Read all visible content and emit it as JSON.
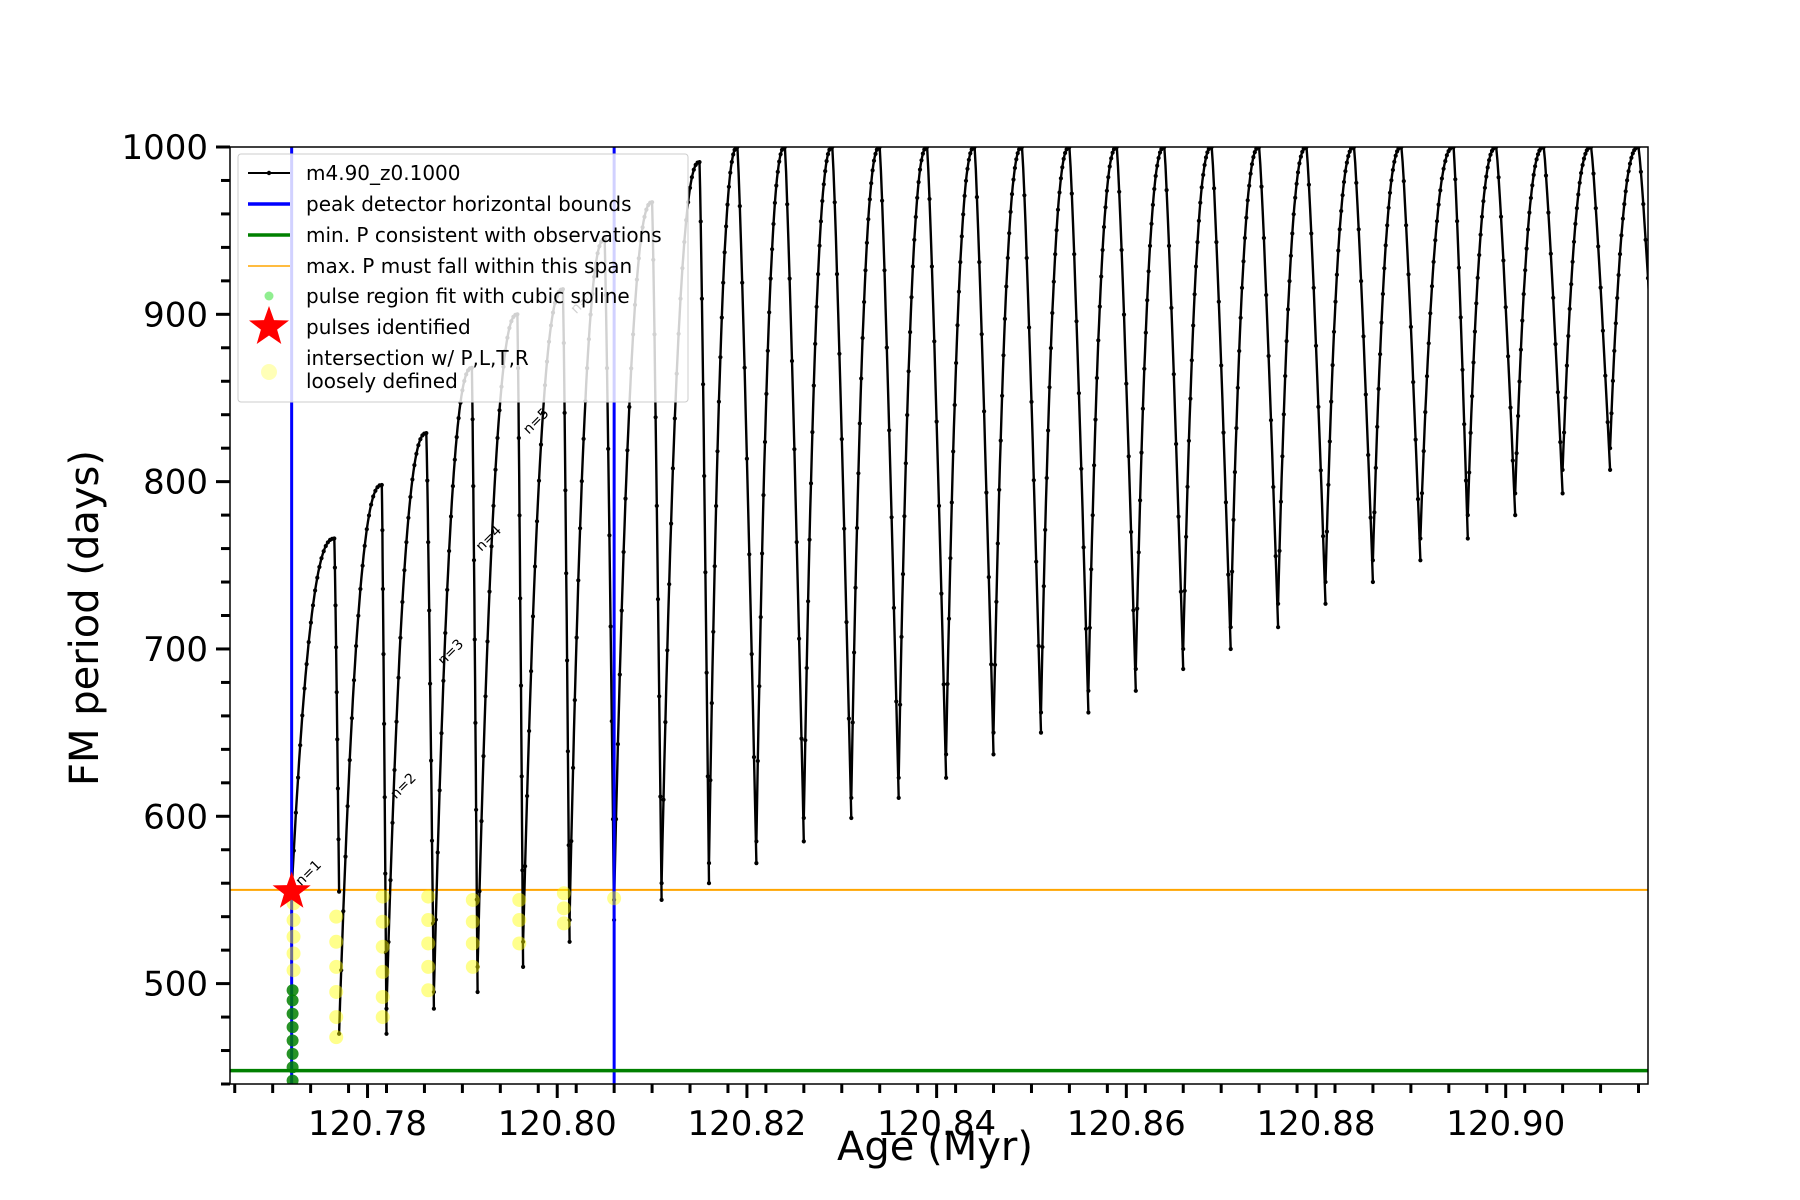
{
  "chart_data": {
    "type": "line",
    "xlabel": "Age (Myr)",
    "ylabel": "FM period (days)",
    "xlim": [
      120.7655,
      120.915
    ],
    "ylim": [
      440,
      1000
    ],
    "xticks": [
      {
        "value": 120.78,
        "label": "120.78"
      },
      {
        "value": 120.8,
        "label": "120.80"
      },
      {
        "value": 120.82,
        "label": "120.82"
      },
      {
        "value": 120.84,
        "label": "120.84"
      },
      {
        "value": 120.86,
        "label": "120.86"
      },
      {
        "value": 120.88,
        "label": "120.88"
      },
      {
        "value": 120.9,
        "label": "120.90"
      }
    ],
    "yticks": [
      {
        "value": 500,
        "label": "500"
      },
      {
        "value": 600,
        "label": "600"
      },
      {
        "value": 700,
        "label": "700"
      },
      {
        "value": 800,
        "label": "800"
      },
      {
        "value": 900,
        "label": "900"
      },
      {
        "value": 1000,
        "label": "1000"
      }
    ],
    "grid": false,
    "legend_position": "top-left",
    "legend": [
      {
        "label": "m4.90_z0.1000",
        "style": "line-dot",
        "color": "#000000"
      },
      {
        "label": "peak detector horizontal bounds",
        "style": "line",
        "color": "#0000ff"
      },
      {
        "label": "min. P consistent with observations",
        "style": "line",
        "color": "#008000"
      },
      {
        "label": "max. P must fall within this span",
        "style": "line",
        "color": "#ffa500"
      },
      {
        "label": "pulse region fit with cubic spline",
        "style": "dot",
        "color": "#90ee90"
      },
      {
        "label": "pulses identified",
        "style": "star",
        "color": "#ff0000"
      },
      {
        "label": "intersection w/ P,L,T,R\nloosely defined",
        "style": "circle",
        "color": "#ffff99"
      }
    ],
    "series": [
      {
        "name": "m4.90_z0.1000",
        "color": "#000000",
        "pulses": [
          {
            "start": 120.772,
            "peak": 120.7765,
            "end": 120.777,
            "top": 766,
            "bottom": 555,
            "start_low": 555
          },
          {
            "start": 120.777,
            "peak": 120.7815,
            "end": 120.782,
            "top": 798,
            "bottom": 470
          },
          {
            "start": 120.782,
            "peak": 120.7862,
            "end": 120.787,
            "top": 829,
            "bottom": 485
          },
          {
            "start": 120.787,
            "peak": 120.791,
            "end": 120.7916,
            "top": 868,
            "bottom": 495
          },
          {
            "start": 120.7916,
            "peak": 120.7958,
            "end": 120.7964,
            "top": 900,
            "bottom": 510
          },
          {
            "start": 120.7964,
            "peak": 120.8006,
            "end": 120.8013,
            "top": 915,
            "bottom": 525
          },
          {
            "start": 120.8013,
            "peak": 120.805,
            "end": 120.806,
            "top": 945,
            "bottom": 538
          },
          {
            "start": 120.806,
            "peak": 120.81,
            "end": 120.811,
            "top": 967,
            "bottom": 550
          },
          {
            "start": 120.811,
            "peak": 120.815,
            "end": 120.816,
            "top": 991,
            "bottom": 560
          },
          {
            "start": 120.816,
            "peak": 120.819,
            "end": 120.821,
            "top": 1000,
            "bottom": 572
          },
          {
            "start": 120.821,
            "peak": 120.824,
            "end": 120.826,
            "top": 1000,
            "bottom": 585
          },
          {
            "start": 120.826,
            "peak": 120.829,
            "end": 120.831,
            "top": 1000,
            "bottom": 599
          },
          {
            "start": 120.831,
            "peak": 120.834,
            "end": 120.836,
            "top": 1000,
            "bottom": 611
          },
          {
            "start": 120.836,
            "peak": 120.839,
            "end": 120.841,
            "top": 1000,
            "bottom": 623
          },
          {
            "start": 120.841,
            "peak": 120.844,
            "end": 120.846,
            "top": 1000,
            "bottom": 637
          },
          {
            "start": 120.846,
            "peak": 120.849,
            "end": 120.851,
            "top": 1000,
            "bottom": 650
          },
          {
            "start": 120.851,
            "peak": 120.854,
            "end": 120.856,
            "top": 1000,
            "bottom": 662
          },
          {
            "start": 120.856,
            "peak": 120.859,
            "end": 120.861,
            "top": 1000,
            "bottom": 675
          },
          {
            "start": 120.861,
            "peak": 120.864,
            "end": 120.866,
            "top": 1000,
            "bottom": 688
          },
          {
            "start": 120.866,
            "peak": 120.869,
            "end": 120.871,
            "top": 1000,
            "bottom": 700
          },
          {
            "start": 120.871,
            "peak": 120.874,
            "end": 120.876,
            "top": 1000,
            "bottom": 713
          },
          {
            "start": 120.876,
            "peak": 120.879,
            "end": 120.881,
            "top": 1000,
            "bottom": 727
          },
          {
            "start": 120.881,
            "peak": 120.884,
            "end": 120.886,
            "top": 1000,
            "bottom": 740
          },
          {
            "start": 120.886,
            "peak": 120.889,
            "end": 120.891,
            "top": 1000,
            "bottom": 753
          },
          {
            "start": 120.891,
            "peak": 120.8945,
            "end": 120.896,
            "top": 1000,
            "bottom": 766
          },
          {
            "start": 120.896,
            "peak": 120.899,
            "end": 120.901,
            "top": 1000,
            "bottom": 780
          },
          {
            "start": 120.901,
            "peak": 120.904,
            "end": 120.906,
            "top": 1000,
            "bottom": 793
          },
          {
            "start": 120.906,
            "peak": 120.909,
            "end": 120.911,
            "top": 1000,
            "bottom": 807
          },
          {
            "start": 120.911,
            "peak": 120.914,
            "end": 120.916,
            "top": 1000,
            "bottom": 820
          }
        ]
      },
      {
        "name": "peak detector horizontal bounds",
        "color": "#0000ff",
        "type": "vline",
        "x": [
          120.772,
          120.806
        ]
      },
      {
        "name": "min. P consistent with observations",
        "color": "#008000",
        "type": "hline",
        "y": 448
      },
      {
        "name": "max. P must fall within this span",
        "color": "#ffa500",
        "type": "hline",
        "y": 556
      },
      {
        "name": "pulse region fit with cubic spline",
        "color": "#008000",
        "points": [
          {
            "x": 120.7721,
            "y": 442
          },
          {
            "x": 120.7721,
            "y": 450
          },
          {
            "x": 120.7721,
            "y": 458
          },
          {
            "x": 120.7721,
            "y": 466
          },
          {
            "x": 120.7721,
            "y": 474
          },
          {
            "x": 120.7721,
            "y": 482
          },
          {
            "x": 120.7721,
            "y": 490
          },
          {
            "x": 120.7721,
            "y": 496
          }
        ]
      },
      {
        "name": "pulses identified",
        "color": "#ff0000",
        "points": [
          {
            "x": 120.772,
            "y": 555
          }
        ]
      },
      {
        "name": "intersection w/ P,L,T,R\nloosely defined",
        "color": "#ffff00",
        "points": [
          {
            "x": 120.7722,
            "y": 548
          },
          {
            "x": 120.7722,
            "y": 538
          },
          {
            "x": 120.7722,
            "y": 528
          },
          {
            "x": 120.7722,
            "y": 518
          },
          {
            "x": 120.7722,
            "y": 508
          },
          {
            "x": 120.7767,
            "y": 540
          },
          {
            "x": 120.7767,
            "y": 525
          },
          {
            "x": 120.7767,
            "y": 510
          },
          {
            "x": 120.7767,
            "y": 495
          },
          {
            "x": 120.7767,
            "y": 480
          },
          {
            "x": 120.7767,
            "y": 468
          },
          {
            "x": 120.7816,
            "y": 552
          },
          {
            "x": 120.7816,
            "y": 537
          },
          {
            "x": 120.7816,
            "y": 522
          },
          {
            "x": 120.7816,
            "y": 507
          },
          {
            "x": 120.7816,
            "y": 492
          },
          {
            "x": 120.7816,
            "y": 480
          },
          {
            "x": 120.7864,
            "y": 552
          },
          {
            "x": 120.7864,
            "y": 538
          },
          {
            "x": 120.7864,
            "y": 524
          },
          {
            "x": 120.7864,
            "y": 510
          },
          {
            "x": 120.7864,
            "y": 496
          },
          {
            "x": 120.7911,
            "y": 550
          },
          {
            "x": 120.7911,
            "y": 537
          },
          {
            "x": 120.7911,
            "y": 524
          },
          {
            "x": 120.7911,
            "y": 510
          },
          {
            "x": 120.796,
            "y": 550
          },
          {
            "x": 120.796,
            "y": 538
          },
          {
            "x": 120.796,
            "y": 524
          },
          {
            "x": 120.8007,
            "y": 554
          },
          {
            "x": 120.8007,
            "y": 545
          },
          {
            "x": 120.8007,
            "y": 536
          },
          {
            "x": 120.806,
            "y": 551
          }
        ]
      }
    ],
    "annotations": [
      {
        "text": "n=1",
        "x": 120.773,
        "y": 558
      },
      {
        "text": "n=2",
        "x": 120.783,
        "y": 610
      },
      {
        "text": "n=3",
        "x": 120.788,
        "y": 690
      },
      {
        "text": "n=4",
        "x": 120.792,
        "y": 758
      },
      {
        "text": "n=5",
        "x": 120.797,
        "y": 828
      },
      {
        "text": "n=",
        "x": 120.802,
        "y": 900
      }
    ]
  }
}
